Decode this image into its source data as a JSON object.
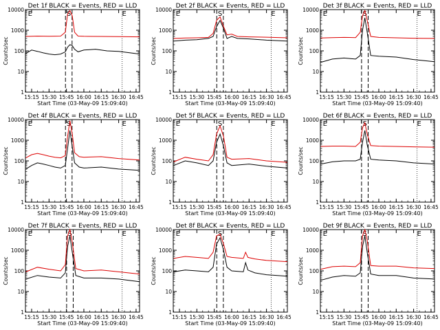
{
  "colors": {
    "events": "#000000",
    "lld": "#dd0000",
    "axes": "#000000"
  },
  "chart_data": [
    {
      "type": "line",
      "title": "Det 1f BLACK = Events, RED = LLD",
      "xlabel": "Start Time (03-May-09 15:09:40)",
      "ylabel": "Counts/sec",
      "x_ticks": [
        "15:15",
        "15:30",
        "15:45",
        "16:00",
        "16:15",
        "16:30",
        "16:45"
      ],
      "y_ticks": [
        "1",
        "10",
        "100",
        "1000",
        "10000"
      ],
      "y_scale": "log",
      "ylim": [
        1,
        10000
      ],
      "markers": [
        {
          "label": "E",
          "at": "15:10"
        },
        {
          "label": "S",
          "at": "15:47"
        },
        {
          "label": "E",
          "at": "16:33"
        }
      ],
      "series": [
        {
          "name": "Events",
          "x": [
            "15:10",
            "15:15",
            "15:20",
            "15:25",
            "15:30",
            "15:35",
            "15:40",
            "15:44",
            "15:46",
            "15:48",
            "15:50",
            "15:52",
            "15:55",
            "16:00",
            "16:10",
            "16:20",
            "16:30",
            "16:40",
            "16:48"
          ],
          "values": [
            75,
            110,
            95,
            80,
            70,
            65,
            70,
            90,
            150,
            200,
            180,
            120,
            90,
            110,
            120,
            100,
            95,
            80,
            70
          ]
        },
        {
          "name": "LLD",
          "x": [
            "15:10",
            "15:20",
            "15:30",
            "15:40",
            "15:44",
            "15:46",
            "15:48",
            "15:50",
            "15:52",
            "15:55",
            "16:00",
            "16:15",
            "16:30",
            "16:48"
          ],
          "values": [
            500,
            520,
            510,
            520,
            800,
            6000,
            9000,
            5000,
            800,
            520,
            510,
            500,
            490,
            480
          ]
        }
      ]
    },
    {
      "type": "line",
      "title": "Det 2f BLACK = Events, RED = LLD",
      "xlabel": "Start Time (03-May-09 15:09:40)",
      "ylabel": "Counts/sec",
      "x_ticks": [
        "15:15",
        "15:30",
        "15:45",
        "16:00",
        "16:15",
        "16:30",
        "16:45"
      ],
      "y_ticks": [
        "1",
        "10",
        "100",
        "1000",
        "10000"
      ],
      "y_scale": "log",
      "ylim": [
        1,
        10000
      ],
      "markers": [
        {
          "label": "E",
          "at": "15:10"
        },
        {
          "label": "S",
          "at": "15:50"
        },
        {
          "label": "E",
          "at": "16:34"
        }
      ],
      "series": [
        {
          "name": "Events",
          "x": [
            "15:10",
            "15:20",
            "15:30",
            "15:40",
            "15:44",
            "15:47",
            "15:50",
            "15:53",
            "15:56",
            "16:00",
            "16:05",
            "16:15",
            "16:30",
            "16:48"
          ],
          "values": [
            300,
            330,
            350,
            400,
            500,
            1500,
            3000,
            1200,
            400,
            500,
            400,
            380,
            330,
            300
          ]
        },
        {
          "name": "LLD",
          "x": [
            "15:10",
            "15:20",
            "15:30",
            "15:40",
            "15:44",
            "15:47",
            "15:50",
            "15:53",
            "15:56",
            "16:00",
            "16:05",
            "16:15",
            "16:30",
            "16:48"
          ],
          "values": [
            400,
            420,
            430,
            450,
            700,
            3000,
            4500,
            1500,
            600,
            650,
            500,
            480,
            460,
            430
          ]
        }
      ]
    },
    {
      "type": "line",
      "title": "Det 3f BLACK = Events, RED = LLD",
      "xlabel": "Start Time (03-May-09 15:09:40)",
      "ylabel": "Counts/sec",
      "x_ticks": [
        "15:15",
        "15:30",
        "15:45",
        "16:00",
        "16:15",
        "16:30",
        "16:45"
      ],
      "y_ticks": [
        "1",
        "10",
        "100",
        "1000",
        "10000"
      ],
      "y_scale": "log",
      "ylim": [
        1,
        10000
      ],
      "markers": [
        {
          "label": "E",
          "at": "15:10"
        },
        {
          "label": "S",
          "at": "15:48"
        },
        {
          "label": "E",
          "at": "16:33"
        }
      ],
      "series": [
        {
          "name": "Events",
          "x": [
            "15:10",
            "15:20",
            "15:30",
            "15:40",
            "15:44",
            "15:46",
            "15:48",
            "15:50",
            "15:53",
            "16:00",
            "16:15",
            "16:30",
            "16:48"
          ],
          "values": [
            28,
            40,
            45,
            40,
            60,
            1000,
            4000,
            800,
            60,
            55,
            50,
            38,
            30
          ]
        },
        {
          "name": "LLD",
          "x": [
            "15:10",
            "15:20",
            "15:30",
            "15:40",
            "15:44",
            "15:46",
            "15:48",
            "15:50",
            "15:53",
            "16:00",
            "16:15",
            "16:30",
            "16:48"
          ],
          "values": [
            420,
            440,
            450,
            440,
            800,
            5000,
            9000,
            3000,
            500,
            450,
            430,
            410,
            400
          ]
        }
      ]
    },
    {
      "type": "line",
      "title": "Det 4f BLACK = Events, RED = LLD",
      "xlabel": "Start Time (03-May-09 15:09:40)",
      "ylabel": "Counts/sec",
      "x_ticks": [
        "15:15",
        "15:30",
        "15:45",
        "16:00",
        "16:15",
        "16:30",
        "16:45"
      ],
      "y_ticks": [
        "1",
        "10",
        "100",
        "1000",
        "10000"
      ],
      "y_scale": "log",
      "ylim": [
        1,
        10000
      ],
      "markers": [
        {
          "label": "E",
          "at": "15:10"
        },
        {
          "label": "S",
          "at": "15:47"
        },
        {
          "label": "E",
          "at": "16:33"
        }
      ],
      "series": [
        {
          "name": "Events",
          "x": [
            "15:10",
            "15:15",
            "15:20",
            "15:25",
            "15:30",
            "15:35",
            "15:40",
            "15:44",
            "15:46",
            "15:48",
            "15:50",
            "15:52",
            "15:56",
            "16:00",
            "16:15",
            "16:30",
            "16:48"
          ],
          "values": [
            40,
            60,
            80,
            70,
            60,
            50,
            45,
            60,
            400,
            3000,
            500,
            80,
            50,
            45,
            50,
            40,
            35
          ]
        },
        {
          "name": "LLD",
          "x": [
            "15:10",
            "15:15",
            "15:20",
            "15:25",
            "15:30",
            "15:35",
            "15:40",
            "15:44",
            "15:46",
            "15:48",
            "15:50",
            "15:52",
            "15:56",
            "16:00",
            "16:15",
            "16:30",
            "16:48"
          ],
          "values": [
            140,
            200,
            230,
            200,
            170,
            150,
            140,
            180,
            1500,
            9000,
            2000,
            250,
            160,
            150,
            160,
            130,
            110
          ]
        }
      ]
    },
    {
      "type": "line",
      "title": "Det 5f BLACK = Events, RED = LLD",
      "xlabel": "Start Time (03-May-09 15:09:40)",
      "ylabel": "Counts/sec",
      "x_ticks": [
        "15:15",
        "15:30",
        "15:45",
        "16:00",
        "16:15",
        "16:30",
        "16:45"
      ],
      "y_ticks": [
        "1",
        "10",
        "100",
        "1000",
        "10000"
      ],
      "y_scale": "log",
      "ylim": [
        1,
        10000
      ],
      "markers": [
        {
          "label": "E",
          "at": "15:10"
        },
        {
          "label": "S",
          "at": "15:50"
        },
        {
          "label": "E",
          "at": "16:34"
        }
      ],
      "series": [
        {
          "name": "Events",
          "x": [
            "15:10",
            "15:20",
            "15:30",
            "15:40",
            "15:44",
            "15:47",
            "15:50",
            "15:53",
            "15:56",
            "16:00",
            "16:15",
            "16:30",
            "16:48"
          ],
          "values": [
            60,
            100,
            80,
            60,
            100,
            800,
            2000,
            500,
            80,
            60,
            70,
            55,
            45
          ]
        },
        {
          "name": "LLD",
          "x": [
            "15:10",
            "15:20",
            "15:30",
            "15:40",
            "15:44",
            "15:47",
            "15:50",
            "15:53",
            "15:56",
            "16:00",
            "16:15",
            "16:30",
            "16:48"
          ],
          "values": [
            90,
            150,
            120,
            100,
            200,
            2000,
            5000,
            1500,
            150,
            120,
            130,
            100,
            85
          ]
        }
      ]
    },
    {
      "type": "line",
      "title": "Det 6f BLACK = Events, RED = LLD",
      "xlabel": "Start Time (03-May-09 15:09:40)",
      "ylabel": "Counts/sec",
      "x_ticks": [
        "15:15",
        "15:30",
        "15:45",
        "16:00",
        "16:15",
        "16:30",
        "16:45"
      ],
      "y_ticks": [
        "1",
        "10",
        "100",
        "1000",
        "10000"
      ],
      "y_scale": "log",
      "ylim": [
        1,
        10000
      ],
      "markers": [
        {
          "label": "E",
          "at": "15:10"
        },
        {
          "label": "S",
          "at": "15:48"
        },
        {
          "label": "E",
          "at": "16:33"
        }
      ],
      "series": [
        {
          "name": "Events",
          "x": [
            "15:10",
            "15:20",
            "15:30",
            "15:40",
            "15:44",
            "15:46",
            "15:48",
            "15:50",
            "15:53",
            "16:00",
            "16:15",
            "16:30",
            "16:48"
          ],
          "values": [
            70,
            90,
            100,
            100,
            120,
            800,
            3000,
            600,
            120,
            110,
            100,
            80,
            70
          ]
        },
        {
          "name": "LLD",
          "x": [
            "15:10",
            "15:20",
            "15:30",
            "15:40",
            "15:44",
            "15:46",
            "15:48",
            "15:50",
            "15:53",
            "16:00",
            "16:15",
            "16:30",
            "16:48"
          ],
          "values": [
            500,
            520,
            520,
            500,
            800,
            4000,
            7000,
            2000,
            550,
            520,
            500,
            480,
            460
          ]
        }
      ]
    },
    {
      "type": "line",
      "title": "Det 7f BLACK = Events, RED = LLD",
      "xlabel": "Start Time (03-May-09 15:09:40)",
      "ylabel": "Counts/sec",
      "x_ticks": [
        "15:15",
        "15:30",
        "15:45",
        "16:00",
        "16:15",
        "16:30",
        "16:45"
      ],
      "y_ticks": [
        "1",
        "10",
        "100",
        "1000",
        "10000"
      ],
      "y_scale": "log",
      "ylim": [
        1,
        10000
      ],
      "markers": [
        {
          "label": "E",
          "at": "15:10"
        },
        {
          "label": "S",
          "at": "15:48"
        },
        {
          "label": "E",
          "at": "16:33"
        }
      ],
      "series": [
        {
          "name": "Events",
          "x": [
            "15:10",
            "15:20",
            "15:30",
            "15:40",
            "15:44",
            "15:46",
            "15:48",
            "15:50",
            "15:53",
            "16:00",
            "16:15",
            "16:30",
            "16:48"
          ],
          "values": [
            40,
            60,
            50,
            45,
            80,
            1500,
            5000,
            800,
            60,
            45,
            45,
            40,
            30
          ]
        },
        {
          "name": "LLD",
          "x": [
            "15:10",
            "15:20",
            "15:30",
            "15:40",
            "15:44",
            "15:46",
            "15:48",
            "15:50",
            "15:53",
            "16:00",
            "16:15",
            "16:30",
            "16:48"
          ],
          "values": [
            90,
            150,
            120,
            100,
            200,
            5000,
            10000,
            2500,
            130,
            100,
            110,
            90,
            70
          ]
        }
      ]
    },
    {
      "type": "line",
      "title": "Det 8f BLACK = Events, RED = LLD",
      "xlabel": "Start Time (03-May-09 15:09:40)",
      "ylabel": "Counts/sec",
      "x_ticks": [
        "15:15",
        "15:30",
        "15:45",
        "16:00",
        "16:15",
        "16:30",
        "16:45"
      ],
      "y_ticks": [
        "1",
        "10",
        "100",
        "1000",
        "10000"
      ],
      "y_scale": "log",
      "ylim": [
        1,
        10000
      ],
      "markers": [
        {
          "label": "E",
          "at": "15:10"
        },
        {
          "label": "S",
          "at": "15:50"
        },
        {
          "label": "E",
          "at": "16:34"
        }
      ],
      "series": [
        {
          "name": "Events",
          "x": [
            "15:10",
            "15:20",
            "15:30",
            "15:40",
            "15:44",
            "15:47",
            "15:50",
            "15:53",
            "15:56",
            "16:00",
            "16:10",
            "16:12",
            "16:14",
            "16:20",
            "16:30",
            "16:48"
          ],
          "values": [
            90,
            110,
            100,
            90,
            150,
            2000,
            4000,
            1000,
            150,
            100,
            90,
            250,
            110,
            80,
            65,
            55
          ]
        },
        {
          "name": "LLD",
          "x": [
            "15:10",
            "15:20",
            "15:30",
            "15:40",
            "15:44",
            "15:47",
            "15:50",
            "15:53",
            "15:56",
            "16:00",
            "16:10",
            "16:12",
            "16:14",
            "16:20",
            "16:30",
            "16:48"
          ],
          "values": [
            400,
            500,
            450,
            400,
            800,
            5000,
            6000,
            2000,
            500,
            450,
            400,
            800,
            450,
            380,
            320,
            280
          ]
        }
      ]
    },
    {
      "type": "line",
      "title": "Det 9f BLACK = Events, RED = LLD",
      "xlabel": "Start Time (03-May-09 15:09:40)",
      "ylabel": "Counts/sec",
      "x_ticks": [
        "15:15",
        "15:30",
        "15:45",
        "16:00",
        "16:15",
        "16:30",
        "16:45"
      ],
      "y_ticks": [
        "1",
        "10",
        "100",
        "1000",
        "10000"
      ],
      "y_scale": "log",
      "ylim": [
        1,
        10000
      ],
      "markers": [
        {
          "label": "E",
          "at": "15:10"
        },
        {
          "label": "S",
          "at": "15:48"
        },
        {
          "label": "E",
          "at": "16:33"
        }
      ],
      "series": [
        {
          "name": "Events",
          "x": [
            "15:10",
            "15:20",
            "15:30",
            "15:40",
            "15:44",
            "15:46",
            "15:48",
            "15:50",
            "15:53",
            "16:00",
            "16:15",
            "16:30",
            "16:48"
          ],
          "values": [
            35,
            50,
            60,
            55,
            80,
            1500,
            5000,
            800,
            70,
            60,
            60,
            45,
            40
          ]
        },
        {
          "name": "LLD",
          "x": [
            "15:10",
            "15:20",
            "15:30",
            "15:40",
            "15:44",
            "15:46",
            "15:48",
            "15:50",
            "15:53",
            "16:00",
            "16:15",
            "16:30",
            "16:48"
          ],
          "values": [
            120,
            160,
            170,
            160,
            250,
            5000,
            10000,
            3000,
            180,
            170,
            170,
            140,
            130
          ]
        }
      ]
    }
  ]
}
